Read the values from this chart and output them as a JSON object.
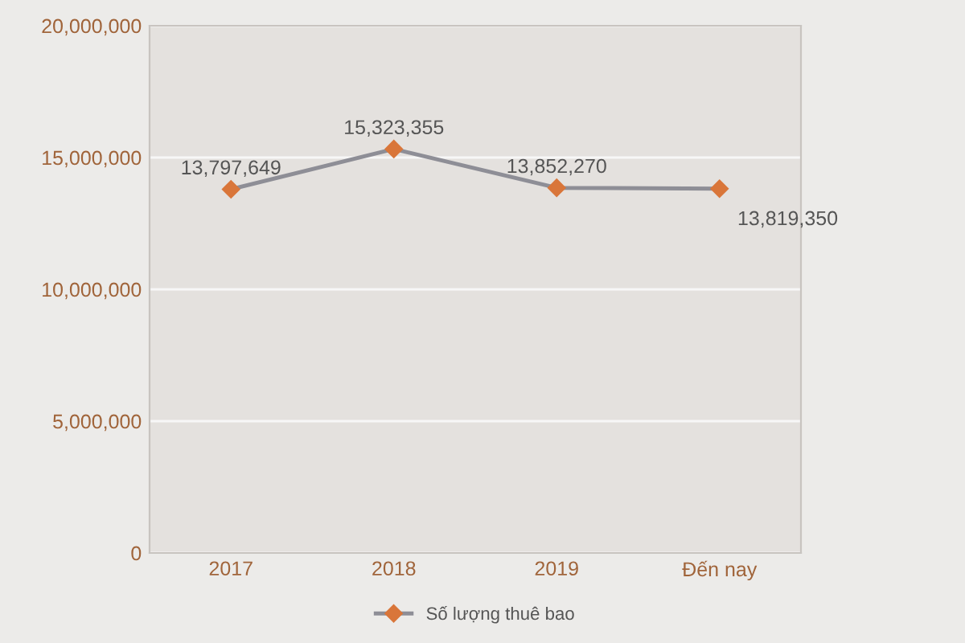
{
  "chart_data": {
    "type": "line",
    "categories": [
      "2017",
      "2018",
      "2019",
      "Đến nay"
    ],
    "series": [
      {
        "name": "Số lượng thuê bao",
        "color": "#d9763a",
        "values": [
          13797649,
          15323355,
          13852270,
          13819350
        ]
      }
    ],
    "value_labels": [
      "13,797,649",
      "15,323,355",
      "13,852,270",
      "13,819,350"
    ],
    "ylim": [
      0,
      20000000
    ],
    "yticks": [
      {
        "value": 0,
        "label": "0"
      },
      {
        "value": 5000000,
        "label": "5,000,000"
      },
      {
        "value": 10000000,
        "label": "10,000,000"
      },
      {
        "value": 15000000,
        "label": "15,000,000"
      },
      {
        "value": 20000000,
        "label": "20,000,000"
      }
    ],
    "grid": "y",
    "legend": "bottom",
    "marker": "diamond",
    "line_style": "solid"
  }
}
